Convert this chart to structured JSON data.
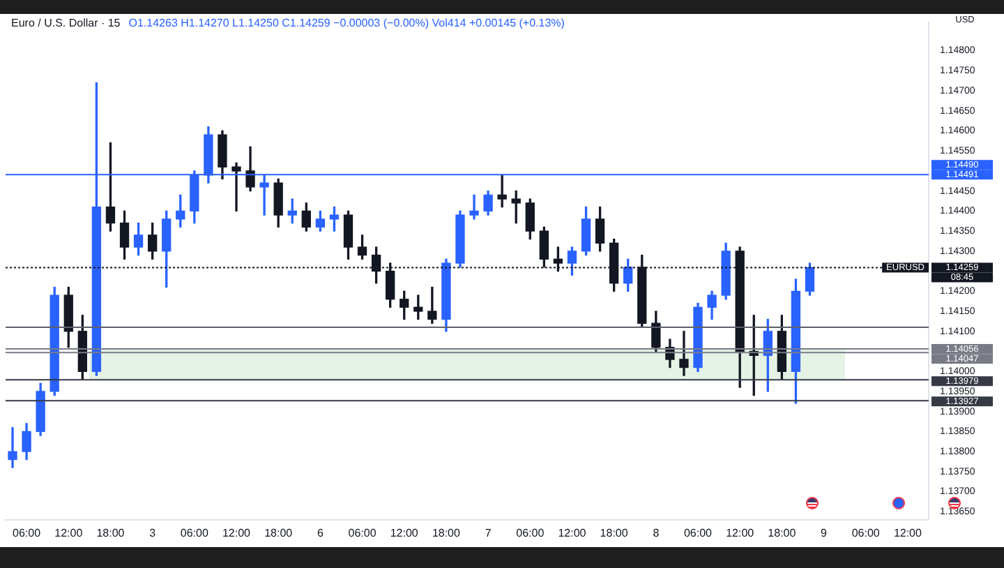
{
  "chart_data": {
    "type": "candlestick",
    "title": "Euro / U.S. Dollar · 15",
    "subtitle": "O1.14263  H1.14270  L1.14250  C1.14259  −0.00003 (−0.00%)  Vol414  +0.00145 (+0.13%)",
    "ylabel": "USD",
    "categories": [
      null,
      "06:00",
      null,
      null,
      "12:00",
      null,
      null,
      "18:00",
      null,
      null,
      "3",
      null,
      null,
      "06:00",
      null,
      null,
      "12:00",
      null,
      null,
      "18:00",
      null,
      null,
      "6",
      null,
      null,
      "06:00",
      null,
      null,
      "12:00",
      null,
      null,
      "18:00",
      null,
      null,
      "7",
      null,
      null,
      "06:00",
      null,
      null,
      "12:00",
      null,
      null,
      "18:00",
      null,
      null,
      "8",
      null,
      null,
      "06:00",
      null,
      null,
      "12:00",
      null,
      null,
      "18:00",
      null,
      null,
      "9",
      null,
      null,
      "06:00",
      null,
      null,
      "12:00",
      null
    ],
    "ohlc": [
      [
        1.1378,
        1.1386,
        1.1376,
        1.138
      ],
      [
        1.138,
        1.1387,
        1.1378,
        1.1385
      ],
      [
        1.1385,
        1.1397,
        1.1384,
        1.1395
      ],
      [
        1.1395,
        1.1421,
        1.1394,
        1.1419
      ],
      [
        1.1419,
        1.1421,
        1.1406,
        1.141
      ],
      [
        1.141,
        1.1414,
        1.1398,
        1.14
      ],
      [
        1.14,
        1.1472,
        1.1399,
        1.1441
      ],
      [
        1.1441,
        1.1457,
        1.1435,
        1.1437
      ],
      [
        1.1437,
        1.144,
        1.1428,
        1.1431
      ],
      [
        1.1431,
        1.1437,
        1.1429,
        1.1434
      ],
      [
        1.1434,
        1.1437,
        1.1428,
        1.143
      ],
      [
        1.143,
        1.144,
        1.1421,
        1.1438
      ],
      [
        1.1438,
        1.1444,
        1.1436,
        1.144
      ],
      [
        1.144,
        1.145,
        1.1437,
        1.1449
      ],
      [
        1.1449,
        1.1461,
        1.1447,
        1.1459
      ],
      [
        1.1459,
        1.146,
        1.1448,
        1.1451
      ],
      [
        1.1451,
        1.1452,
        1.144,
        1.145
      ],
      [
        1.145,
        1.1456,
        1.1445,
        1.1446
      ],
      [
        1.1446,
        1.1449,
        1.1439,
        1.1447
      ],
      [
        1.1447,
        1.1448,
        1.1436,
        1.1439
      ],
      [
        1.1439,
        1.1443,
        1.1437,
        1.144
      ],
      [
        1.144,
        1.1442,
        1.1435,
        1.1436
      ],
      [
        1.1436,
        1.144,
        1.1435,
        1.1438
      ],
      [
        1.1438,
        1.1441,
        1.1435,
        1.1439
      ],
      [
        1.1439,
        1.144,
        1.1428,
        1.1431
      ],
      [
        1.1431,
        1.1434,
        1.1428,
        1.1429
      ],
      [
        1.1429,
        1.1431,
        1.1422,
        1.1425
      ],
      [
        1.1425,
        1.1427,
        1.1416,
        1.1418
      ],
      [
        1.1418,
        1.142,
        1.1413,
        1.1416
      ],
      [
        1.1416,
        1.1419,
        1.1413,
        1.1415
      ],
      [
        1.1415,
        1.1421,
        1.1412,
        1.1413
      ],
      [
        1.1413,
        1.1428,
        1.141,
        1.1427
      ],
      [
        1.1427,
        1.144,
        1.1426,
        1.1439
      ],
      [
        1.1439,
        1.1444,
        1.1438,
        1.144
      ],
      [
        1.144,
        1.1445,
        1.1439,
        1.1444
      ],
      [
        1.1444,
        1.1449,
        1.1441,
        1.1443
      ],
      [
        1.1443,
        1.1445,
        1.1437,
        1.1442
      ],
      [
        1.1442,
        1.1443,
        1.1433,
        1.1435
      ],
      [
        1.1435,
        1.1436,
        1.1426,
        1.1428
      ],
      [
        1.1428,
        1.1431,
        1.1425,
        1.1427
      ],
      [
        1.1427,
        1.1431,
        1.1424,
        1.143
      ],
      [
        1.143,
        1.1441,
        1.1429,
        1.1438
      ],
      [
        1.1438,
        1.1441,
        1.143,
        1.1432
      ],
      [
        1.1432,
        1.1433,
        1.142,
        1.1422
      ],
      [
        1.1422,
        1.1428,
        1.142,
        1.1426
      ],
      [
        1.1426,
        1.1429,
        1.1411,
        1.1412
      ],
      [
        1.1412,
        1.1415,
        1.1405,
        1.1406
      ],
      [
        1.1406,
        1.1408,
        1.1401,
        1.1403
      ],
      [
        1.1403,
        1.141,
        1.1399,
        1.1401
      ],
      [
        1.1401,
        1.1417,
        1.14,
        1.1416
      ],
      [
        1.1416,
        1.142,
        1.1413,
        1.1419
      ],
      [
        1.1419,
        1.1432,
        1.1418,
        1.143
      ],
      [
        1.143,
        1.1431,
        1.1396,
        1.1405
      ],
      [
        1.1405,
        1.1414,
        1.1394,
        1.1404
      ],
      [
        1.1404,
        1.1413,
        1.1395,
        1.141
      ],
      [
        1.141,
        1.1414,
        1.1398,
        1.14
      ],
      [
        1.14,
        1.1423,
        1.1392,
        1.142
      ],
      [
        1.142,
        1.1427,
        1.1419,
        1.14259
      ],
      null,
      null,
      null,
      null,
      null,
      null,
      null,
      null
    ],
    "colors": [
      "#2962ff",
      "#2962ff",
      "#2962ff",
      "#2962ff",
      "#131722",
      "#131722",
      "#2962ff",
      "#131722",
      "#131722",
      "#2962ff",
      "#131722",
      "#2962ff",
      "#2962ff",
      "#2962ff",
      "#2962ff",
      "#131722",
      "#131722",
      "#131722",
      "#2962ff",
      "#131722",
      "#2962ff",
      "#131722",
      "#2962ff",
      "#2962ff",
      "#131722",
      "#131722",
      "#131722",
      "#131722",
      "#131722",
      "#131722",
      "#131722",
      "#2962ff",
      "#2962ff",
      "#2962ff",
      "#2962ff",
      "#131722",
      "#131722",
      "#131722",
      "#131722",
      "#131722",
      "#2962ff",
      "#2962ff",
      "#131722",
      "#131722",
      "#2962ff",
      "#131722",
      "#131722",
      "#131722",
      "#131722",
      "#2962ff",
      "#2962ff",
      "#2962ff",
      "#131722",
      "#131722",
      "#2962ff",
      "#131722",
      "#2962ff",
      "#2962ff",
      null,
      null,
      null,
      null,
      null,
      null,
      null,
      null
    ],
    "ylim": [
      1.1363,
      1.1487
    ],
    "yticks": [
      {
        "value": 1.1365,
        "label": "1.13650"
      },
      {
        "value": 1.137,
        "label": "1.13700"
      },
      {
        "value": 1.1375,
        "label": "1.13750"
      },
      {
        "value": 1.138,
        "label": "1.13800"
      },
      {
        "value": 1.1385,
        "label": "1.13850"
      },
      {
        "value": 1.139,
        "label": "1.13900"
      },
      {
        "value": 1.1395,
        "label": "1.13950"
      },
      {
        "value": 1.14,
        "label": "1.14000"
      },
      {
        "value": 1.141,
        "label": "1.14100"
      },
      {
        "value": 1.1415,
        "label": "1.14150"
      },
      {
        "value": 1.142,
        "label": "1.14200"
      },
      {
        "value": 1.143,
        "label": "1.14300"
      },
      {
        "value": 1.1435,
        "label": "1.14350"
      },
      {
        "value": 1.144,
        "label": "1.14400"
      },
      {
        "value": 1.1445,
        "label": "1.14450"
      },
      {
        "value": 1.1455,
        "label": "1.14550"
      },
      {
        "value": 1.146,
        "label": "1.14600"
      },
      {
        "value": 1.1465,
        "label": "1.14650"
      },
      {
        "value": 1.147,
        "label": "1.14700"
      },
      {
        "value": 1.1475,
        "label": "1.14750"
      },
      {
        "value": 1.148,
        "label": "1.14800"
      }
    ],
    "ref_lines": [
      {
        "axis": "y",
        "value": 1.14491,
        "label": "1.14491",
        "color": "#2962ff"
      },
      {
        "axis": "y",
        "value": 1.14259,
        "label": "1.14259",
        "color": "#131722",
        "line_style": "dotted"
      },
      {
        "axis": "y",
        "value": 1.14056,
        "label": "1.14056",
        "color": "#787b86"
      },
      {
        "axis": "y",
        "value": 1.14047,
        "label": "1.14047",
        "color": "#787b86"
      },
      {
        "axis": "y",
        "value": 1.13979,
        "label": "1.13979",
        "color": "#363a45"
      },
      {
        "axis": "y",
        "value": 1.13927,
        "label": "1.13927",
        "color": "#363a45"
      },
      {
        "axis": "y",
        "value": 1.1411,
        "color": "#5d606b"
      }
    ],
    "bands": [
      {
        "axis": "y",
        "from": 1.13979,
        "to": 1.14056,
        "color": "#4caf50"
      }
    ],
    "annotations": [
      "EURUSD",
      "08:45",
      "1.14490"
    ],
    "grid": false,
    "legend": false
  }
}
